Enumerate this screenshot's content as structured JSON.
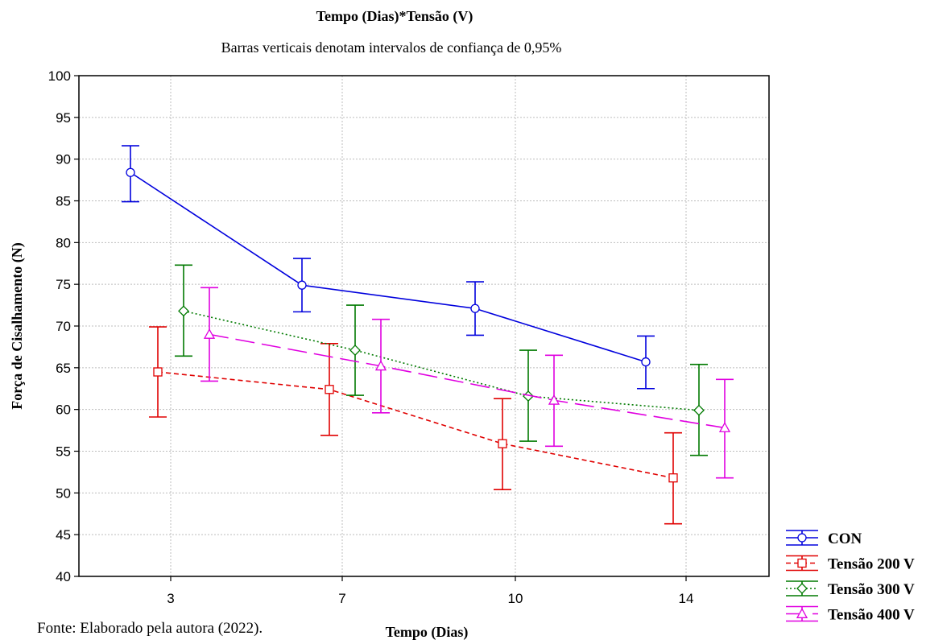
{
  "chart_data": {
    "type": "line",
    "title": "Tempo (Dias)*Tensão (V)",
    "subtitle": "Barras verticais denotam intervalos de confiança de 0,95%",
    "xlabel": "Tempo (Dias)",
    "ylabel": "Força de Cisalhamento (N)",
    "categories": [
      "3",
      "7",
      "10",
      "14"
    ],
    "ylim": [
      40,
      100
    ],
    "yticks": [
      40,
      45,
      50,
      55,
      60,
      65,
      70,
      75,
      80,
      85,
      90,
      95,
      100
    ],
    "grid": true,
    "legend_position": "bottom-right",
    "series": [
      {
        "name": "CON",
        "color": "#0000dd",
        "line_style": "solid",
        "marker": "circle",
        "values": [
          88.4,
          74.9,
          72.1,
          65.7
        ],
        "ci_lower": [
          84.9,
          71.7,
          68.9,
          62.5
        ],
        "ci_upper": [
          91.6,
          78.1,
          75.3,
          68.8
        ]
      },
      {
        "name": "Tensão 200 V",
        "color": "#e00000",
        "line_style": "short-dash",
        "marker": "square",
        "values": [
          64.5,
          62.4,
          55.9,
          51.8
        ],
        "ci_lower": [
          59.1,
          56.9,
          50.4,
          46.3
        ],
        "ci_upper": [
          69.9,
          67.9,
          61.3,
          57.2
        ]
      },
      {
        "name": "Tensão 300 V",
        "color": "#007a00",
        "line_style": "dotted",
        "marker": "diamond",
        "values": [
          71.8,
          67.1,
          61.6,
          59.9
        ],
        "ci_lower": [
          66.4,
          61.7,
          56.2,
          54.5
        ],
        "ci_upper": [
          77.3,
          72.5,
          67.1,
          65.4
        ]
      },
      {
        "name": "Tensão 400 V",
        "color": "#e000e0",
        "line_style": "long-dash",
        "marker": "triangle",
        "values": [
          69.0,
          65.2,
          61.1,
          57.8
        ],
        "ci_lower": [
          63.4,
          59.6,
          55.6,
          51.8
        ],
        "ci_upper": [
          74.6,
          70.8,
          66.5,
          63.6
        ]
      }
    ]
  },
  "source_note": "Fonte: Elaborado pela autora (2022)."
}
